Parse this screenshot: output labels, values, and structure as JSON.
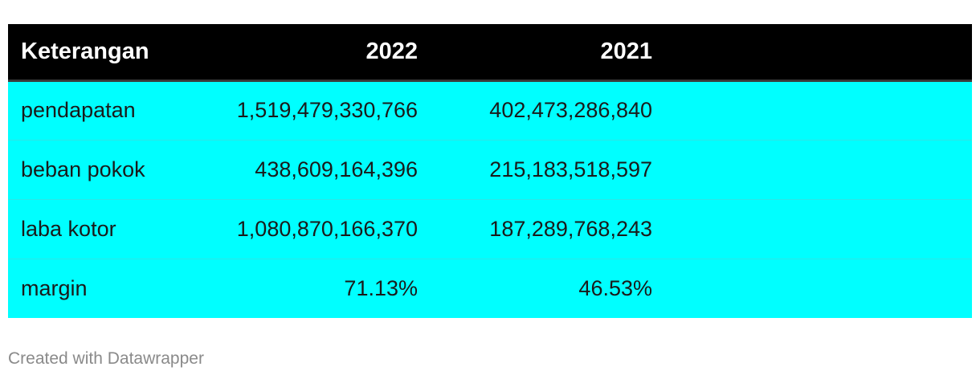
{
  "chart_data": {
    "type": "table",
    "columns": [
      "Keterangan",
      "2022",
      "2021"
    ],
    "rows": [
      {
        "label": "pendapatan",
        "y2022": "1,519,479,330,766",
        "y2021": "402,473,286,840"
      },
      {
        "label": "beban pokok",
        "y2022": "438,609,164,396",
        "y2021": "215,183,518,597"
      },
      {
        "label": "laba kotor",
        "y2022": "1,080,870,166,370",
        "y2021": "187,289,768,243"
      },
      {
        "label": "margin",
        "y2022": "71.13%",
        "y2021": "46.53%"
      }
    ]
  },
  "colors": {
    "header_bg": "#000000",
    "header_text": "#ffffff",
    "row_bg": "#00ffff",
    "cell_text": "#1a1a1a",
    "footer_text": "#8a8a8a"
  },
  "footer": {
    "credit": "Created with Datawrapper"
  }
}
